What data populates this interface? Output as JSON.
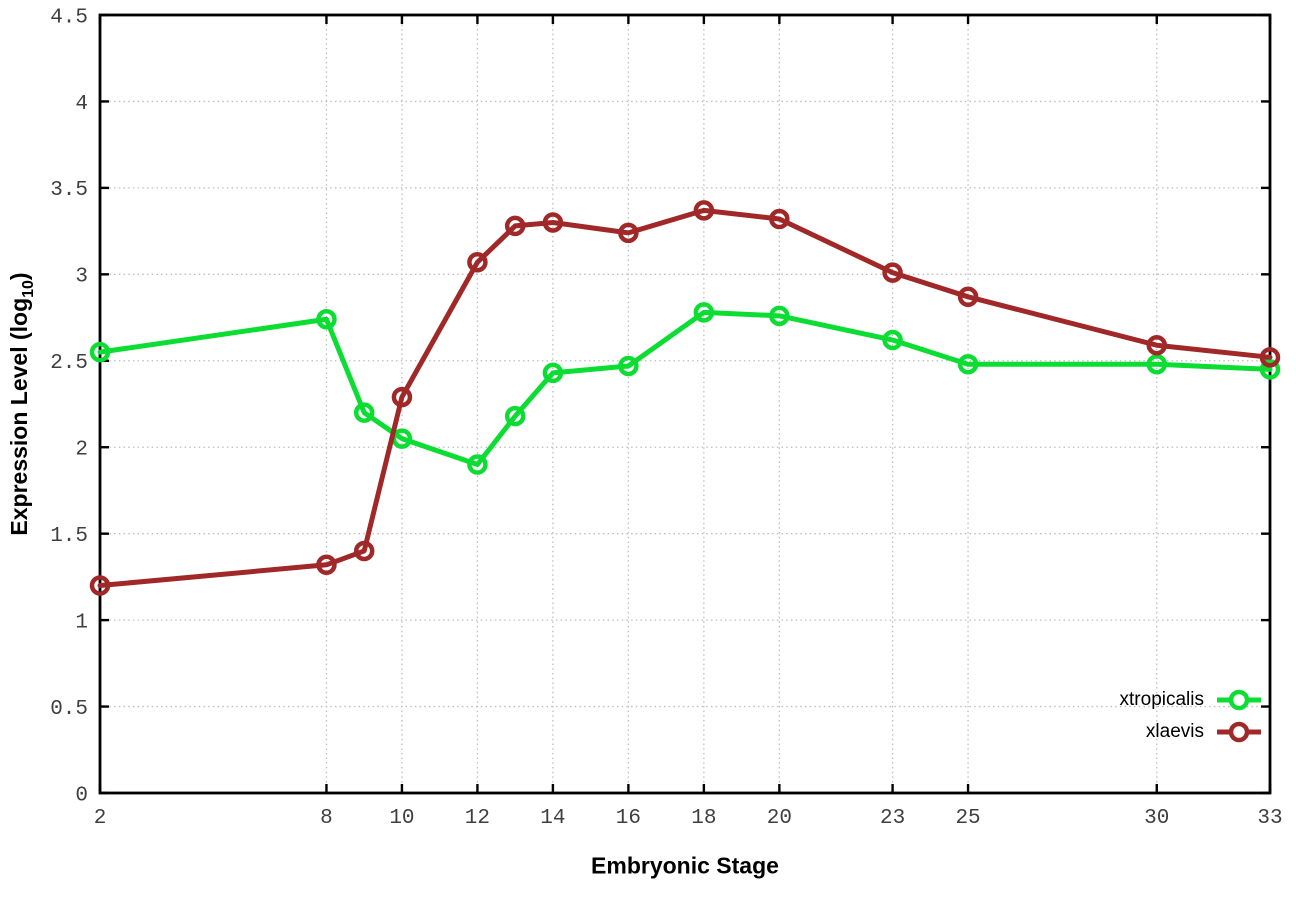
{
  "figure": {
    "background": "#ffffff",
    "border_color": "#000000",
    "grid_color": "#bdbdbd",
    "tick_label_color": "#3f3f3f"
  },
  "chart_data": {
    "type": "line",
    "title": "",
    "xlabel": "Embryonic Stage",
    "ylabel": "Expression Level (log10)",
    "ylabel_base": "Expression Level (log",
    "ylabel_sub": "10",
    "ylabel_close": ")",
    "x": [
      2,
      8,
      9,
      10,
      12,
      13,
      14,
      16,
      18,
      20,
      23,
      25,
      30,
      33
    ],
    "series": [
      {
        "name": "xtropicalis",
        "color": "#0bdd32",
        "values": [
          2.55,
          2.74,
          2.2,
          2.05,
          1.9,
          2.18,
          2.43,
          2.47,
          2.78,
          2.76,
          2.62,
          2.48,
          2.48,
          2.45
        ]
      },
      {
        "name": "xlaevis",
        "color": "#a12828",
        "values": [
          1.2,
          1.32,
          1.4,
          2.29,
          3.07,
          3.28,
          3.3,
          3.24,
          3.37,
          3.32,
          3.01,
          2.87,
          2.59,
          2.52
        ]
      }
    ],
    "xlim": [
      2,
      33
    ],
    "ylim": [
      0,
      4.5
    ],
    "x_ticks": [
      2,
      8,
      10,
      12,
      14,
      16,
      18,
      20,
      23,
      25,
      30,
      33
    ],
    "x_tick_labels": [
      "2",
      "8",
      "10",
      "12",
      "14",
      "16",
      "18",
      "20",
      "23",
      "25",
      "30",
      "33"
    ],
    "y_ticks": [
      0,
      0.5,
      1,
      1.5,
      2,
      2.5,
      3,
      3.5,
      4,
      4.5
    ],
    "y_tick_labels": [
      "0",
      "0.5",
      "1",
      "1.5",
      "2",
      "2.5",
      "3",
      "3.5",
      "4",
      "4.5"
    ],
    "grid": true,
    "legend_position": "bottom-right"
  }
}
